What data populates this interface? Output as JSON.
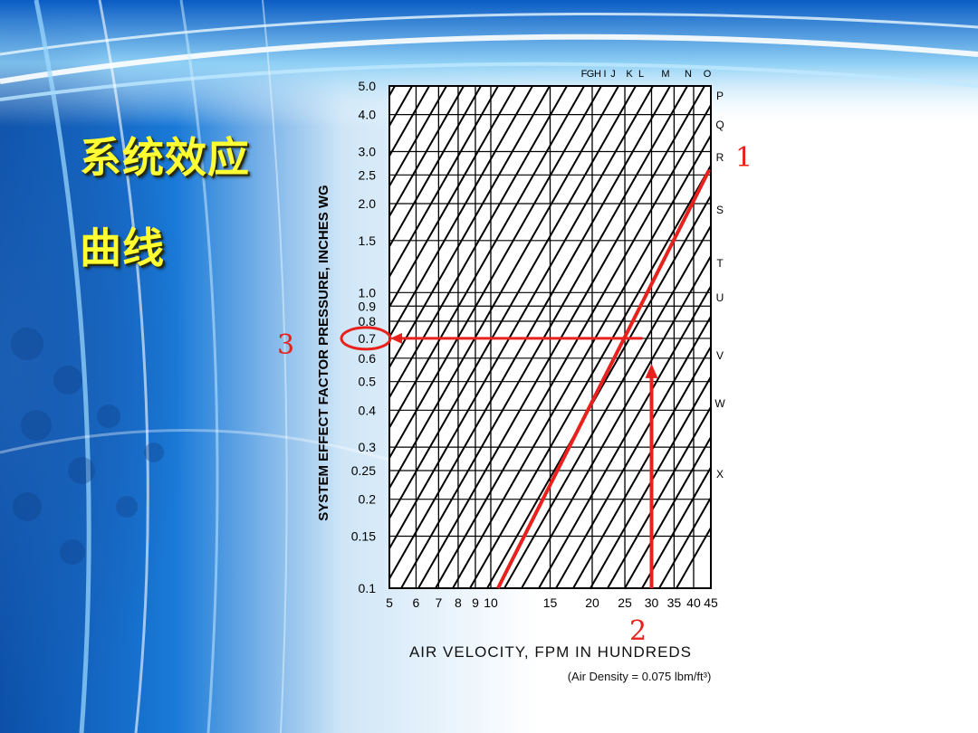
{
  "slide": {
    "title_line1": "系统效应",
    "title_line2": "曲线"
  },
  "chart_data": {
    "type": "line",
    "x_scale": "log",
    "y_scale": "log",
    "xlabel": "AIR VELOCITY, FPM IN HUNDREDS",
    "ylabel": "SYSTEM EFFECT FACTOR   PRESSURE, INCHES WG",
    "note": "(Air Density = 0.075 lbm/ft³)",
    "xlim": [
      5,
      45
    ],
    "ylim": [
      0.1,
      5.0
    ],
    "x_ticks": [
      5,
      6,
      7,
      8,
      9,
      10,
      15,
      20,
      25,
      30,
      35,
      40,
      45
    ],
    "x_tick_labels": [
      "5",
      "6",
      "7",
      "8",
      "9",
      "10",
      "15",
      "20",
      "25",
      "30",
      "35",
      "40",
      "45"
    ],
    "y_ticks": [
      0.1,
      0.15,
      0.2,
      0.25,
      0.3,
      0.4,
      0.5,
      0.6,
      0.7,
      0.8,
      0.9,
      1.0,
      1.5,
      2.0,
      2.5,
      3.0,
      4.0,
      5.0
    ],
    "y_tick_labels": [
      "0.1",
      "0.15",
      "0.2",
      "0.25",
      "0.3",
      "0.4",
      "0.5",
      "0.6",
      "0.7",
      "0.8",
      "0.9",
      "1.0",
      "1.5",
      "2.0",
      "2.5",
      "3.0",
      "4.0",
      "5.0"
    ],
    "grid": true,
    "curve_labels_top": [
      "F",
      "G",
      "H",
      "I",
      "J",
      "K",
      "L",
      "M",
      "N",
      "O"
    ],
    "curve_labels_right": [
      "P",
      "Q",
      "R",
      "S",
      "T",
      "U",
      "V",
      "W",
      "X"
    ],
    "highlighted_curve": {
      "label": "R",
      "x": [
        10.5,
        44.5
      ],
      "y": [
        0.1,
        2.6
      ]
    },
    "annotations": [
      {
        "text": "1",
        "refers_to": "highlighted curve R"
      },
      {
        "text": "2",
        "refers_to": "air velocity 30"
      },
      {
        "text": "3",
        "refers_to": "system effect factor 0.7"
      }
    ],
    "lookup": {
      "x": 30,
      "y": 0.7
    }
  }
}
